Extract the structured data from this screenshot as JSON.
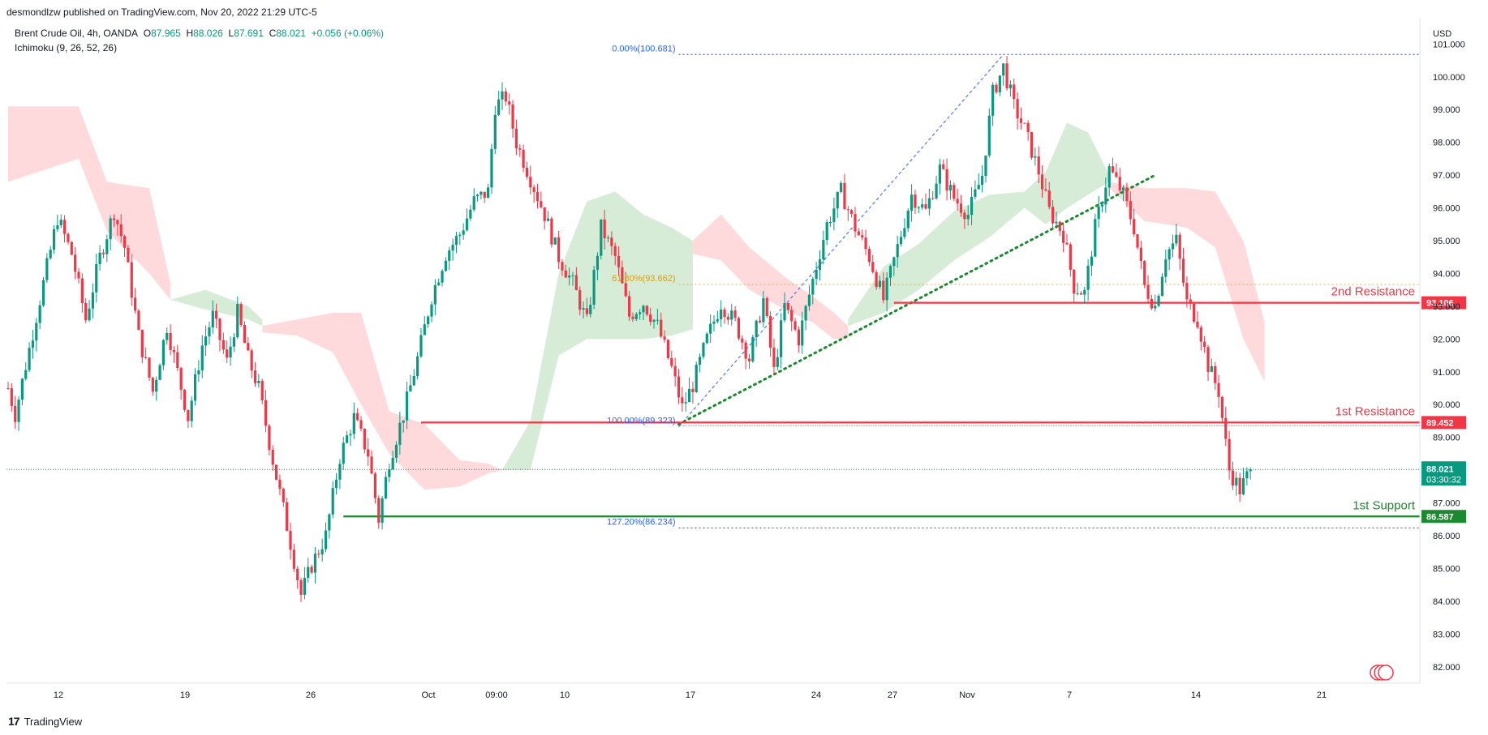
{
  "header": {
    "published": "desmondlzw published on TradingView.com, Nov 20, 2022 21:29 UTC-5"
  },
  "legend": {
    "symbol": "Brent Crude Oil, 4h, OANDA",
    "o_label": "O",
    "o": "87.965",
    "h_label": "H",
    "h": "88.026",
    "l_label": "L",
    "l": "87.691",
    "c_label": "C",
    "c": "88.021",
    "change": "+0.056 (+0.06%)",
    "indicator": "Ichimoku (9, 26, 52, 26)"
  },
  "footer": {
    "brand": "TradingView"
  },
  "colors": {
    "up": "#089981",
    "down": "#f23645",
    "resistance": "#f23645",
    "support": "#1b8a2e",
    "fib": "#2962ff",
    "cloud_bull": "#c8e6c9",
    "cloud_bear": "#ffcdd2",
    "last_price": "#089981"
  },
  "chart_data": {
    "type": "candlestick",
    "instrument": "Brent Crude Oil",
    "timeframe": "4h",
    "currency": "USD",
    "ylim": [
      81.5,
      101.8
    ],
    "y_ticks": [
      "82.000",
      "83.000",
      "84.000",
      "85.000",
      "86.000",
      "87.000",
      "88.000",
      "89.000",
      "90.000",
      "91.000",
      "92.000",
      "93.000",
      "94.000",
      "95.000",
      "96.000",
      "97.000",
      "98.000",
      "99.000",
      "100.000",
      "101.000"
    ],
    "x_ticks": [
      "12",
      "19",
      "26",
      "Oct",
      "09:00",
      "10",
      "17",
      "24",
      "27",
      "Nov",
      "7",
      "14",
      "21"
    ],
    "levels": [
      {
        "name": "2nd Resistance",
        "value": 93.106,
        "label": "93.106",
        "kind": "resistance"
      },
      {
        "name": "1st Resistance",
        "value": 89.452,
        "label": "89.452",
        "kind": "resistance"
      },
      {
        "name": "1st Support",
        "value": 86.587,
        "label": "86.587",
        "kind": "support"
      }
    ],
    "last_price": {
      "value": 88.021,
      "label": "88.021",
      "countdown": "03:30:32"
    },
    "fib_labels": [
      {
        "text": "0.00%(100.681)",
        "value": 100.681
      },
      {
        "text": "61.80%(93.662)",
        "value": 93.662
      },
      {
        "text": "100.00%(89.323)",
        "value": 89.323
      },
      {
        "text": "127.20%(86.234)",
        "value": 86.234
      }
    ],
    "price_path": [
      {
        "t": 0,
        "p": 90.5
      },
      {
        "t": 2,
        "p": 89.7
      },
      {
        "t": 5,
        "p": 91.2
      },
      {
        "t": 9,
        "p": 93.2
      },
      {
        "t": 14,
        "p": 95.7
      },
      {
        "t": 18,
        "p": 94.6
      },
      {
        "t": 22,
        "p": 92.6
      },
      {
        "t": 26,
        "p": 94.5
      },
      {
        "t": 30,
        "p": 95.9
      },
      {
        "t": 33,
        "p": 94.8
      },
      {
        "t": 37,
        "p": 92.1
      },
      {
        "t": 41,
        "p": 90.4
      },
      {
        "t": 45,
        "p": 92.4
      },
      {
        "t": 48,
        "p": 91.0
      },
      {
        "t": 51,
        "p": 89.6
      },
      {
        "t": 55,
        "p": 91.8
      },
      {
        "t": 58,
        "p": 92.7
      },
      {
        "t": 62,
        "p": 91.3
      },
      {
        "t": 65,
        "p": 92.8
      },
      {
        "t": 68,
        "p": 91.4
      },
      {
        "t": 71,
        "p": 90.5
      },
      {
        "t": 75,
        "p": 88.3
      },
      {
        "t": 79,
        "p": 86.3
      },
      {
        "t": 83,
        "p": 84.2
      },
      {
        "t": 86,
        "p": 85.1
      },
      {
        "t": 90,
        "p": 86.0
      },
      {
        "t": 94,
        "p": 88.4
      },
      {
        "t": 98,
        "p": 89.6
      },
      {
        "t": 102,
        "p": 88.5
      },
      {
        "t": 105,
        "p": 86.5
      },
      {
        "t": 108,
        "p": 88.3
      },
      {
        "t": 112,
        "p": 89.7
      },
      {
        "t": 116,
        "p": 91.4
      },
      {
        "t": 120,
        "p": 93.3
      },
      {
        "t": 124,
        "p": 94.6
      },
      {
        "t": 128,
        "p": 95.2
      },
      {
        "t": 132,
        "p": 96.2
      },
      {
        "t": 136,
        "p": 96.5
      },
      {
        "t": 138,
        "p": 99.1
      },
      {
        "t": 141,
        "p": 99.4
      },
      {
        "t": 144,
        "p": 98.0
      },
      {
        "t": 148,
        "p": 96.9
      },
      {
        "t": 152,
        "p": 95.8
      },
      {
        "t": 156,
        "p": 94.5
      },
      {
        "t": 160,
        "p": 93.7
      },
      {
        "t": 164,
        "p": 92.5
      },
      {
        "t": 168,
        "p": 95.4
      },
      {
        "t": 172,
        "p": 94.5
      },
      {
        "t": 176,
        "p": 92.7
      },
      {
        "t": 180,
        "p": 93.1
      },
      {
        "t": 184,
        "p": 92.4
      },
      {
        "t": 188,
        "p": 91.1
      },
      {
        "t": 191,
        "p": 89.9
      },
      {
        "t": 194,
        "p": 90.6
      },
      {
        "t": 198,
        "p": 92.0
      },
      {
        "t": 202,
        "p": 93.1
      },
      {
        "t": 206,
        "p": 92.5
      },
      {
        "t": 210,
        "p": 91.4
      },
      {
        "t": 214,
        "p": 93.2
      },
      {
        "t": 217,
        "p": 91.0
      },
      {
        "t": 220,
        "p": 93.0
      },
      {
        "t": 224,
        "p": 92.0
      },
      {
        "t": 228,
        "p": 93.8
      },
      {
        "t": 232,
        "p": 95.5
      },
      {
        "t": 236,
        "p": 96.5
      },
      {
        "t": 240,
        "p": 95.4
      },
      {
        "t": 244,
        "p": 94.5
      },
      {
        "t": 248,
        "p": 93.2
      },
      {
        "t": 252,
        "p": 94.8
      },
      {
        "t": 256,
        "p": 96.4
      },
      {
        "t": 260,
        "p": 95.9
      },
      {
        "t": 264,
        "p": 97.2
      },
      {
        "t": 268,
        "p": 96.3
      },
      {
        "t": 272,
        "p": 95.8
      },
      {
        "t": 276,
        "p": 97.0
      },
      {
        "t": 279,
        "p": 99.5
      },
      {
        "t": 282,
        "p": 100.3
      },
      {
        "t": 285,
        "p": 99.1
      },
      {
        "t": 288,
        "p": 98.4
      },
      {
        "t": 292,
        "p": 97.1
      },
      {
        "t": 295,
        "p": 95.9
      },
      {
        "t": 299,
        "p": 95.2
      },
      {
        "t": 302,
        "p": 93.6
      },
      {
        "t": 305,
        "p": 93.4
      },
      {
        "t": 308,
        "p": 95.4
      },
      {
        "t": 312,
        "p": 97.2
      },
      {
        "t": 316,
        "p": 96.4
      },
      {
        "t": 319,
        "p": 95.4
      },
      {
        "t": 322,
        "p": 93.6
      },
      {
        "t": 325,
        "p": 93.0
      },
      {
        "t": 328,
        "p": 94.6
      },
      {
        "t": 331,
        "p": 95.0
      },
      {
        "t": 334,
        "p": 93.1
      },
      {
        "t": 337,
        "p": 92.6
      },
      {
        "t": 340,
        "p": 91.2
      },
      {
        "t": 343,
        "p": 90.4
      },
      {
        "t": 346,
        "p": 88.0
      },
      {
        "t": 349,
        "p": 87.4
      },
      {
        "t": 352,
        "p": 88.0
      }
    ],
    "cloud_segments": [
      {
        "kind": "bear",
        "pts": [
          [
            0,
            99.1,
            96.8
          ],
          [
            20,
            99.1,
            97.5
          ],
          [
            28,
            96.8,
            95.3
          ],
          [
            40,
            96.6,
            94.0
          ],
          [
            46,
            93.7,
            93.2
          ]
        ]
      },
      {
        "kind": "bull",
        "pts": [
          [
            46,
            93.2,
            93.2
          ],
          [
            56,
            93.5,
            92.9
          ],
          [
            68,
            93.0,
            92.6
          ],
          [
            72,
            92.6,
            92.4
          ]
        ]
      },
      {
        "kind": "bear",
        "pts": [
          [
            72,
            92.4,
            92.2
          ],
          [
            82,
            92.6,
            92.1
          ],
          [
            92,
            92.8,
            91.6
          ],
          [
            100,
            92.8,
            90.0
          ],
          [
            108,
            89.8,
            88.5
          ],
          [
            118,
            89.4,
            87.4
          ],
          [
            128,
            88.3,
            87.5
          ],
          [
            136,
            88.2,
            87.9
          ],
          [
            140,
            88.0,
            88.0
          ]
        ]
      },
      {
        "kind": "bull",
        "pts": [
          [
            140,
            88.0,
            88.0
          ],
          [
            148,
            89.5,
            88.0
          ],
          [
            156,
            94.0,
            91.5
          ],
          [
            164,
            96.2,
            92.0
          ],
          [
            172,
            96.5,
            92.0
          ],
          [
            180,
            95.8,
            92.0
          ],
          [
            188,
            95.4,
            92.1
          ],
          [
            194,
            95.0,
            92.3
          ]
        ]
      },
      {
        "kind": "bear",
        "pts": [
          [
            194,
            95.0,
            94.6
          ],
          [
            202,
            95.8,
            94.4
          ],
          [
            210,
            94.8,
            93.5
          ],
          [
            220,
            93.9,
            92.9
          ],
          [
            228,
            93.3,
            92.5
          ],
          [
            234,
            92.8,
            92.0
          ],
          [
            238,
            92.4,
            92.0
          ]
        ]
      },
      {
        "kind": "bull",
        "pts": [
          [
            238,
            92.6,
            92.4
          ],
          [
            248,
            94.2,
            92.8
          ],
          [
            258,
            94.9,
            93.5
          ],
          [
            268,
            95.9,
            94.4
          ],
          [
            278,
            96.4,
            95.1
          ],
          [
            288,
            96.5,
            96.0
          ],
          [
            294,
            97.1,
            95.5
          ],
          [
            300,
            98.6,
            96.0
          ],
          [
            306,
            98.3,
            96.4
          ],
          [
            312,
            97.0,
            96.8
          ]
        ]
      },
      {
        "kind": "bear",
        "pts": [
          [
            312,
            96.8,
            96.6
          ],
          [
            322,
            96.6,
            95.6
          ],
          [
            334,
            96.6,
            95.4
          ],
          [
            342,
            96.5,
            94.8
          ],
          [
            350,
            95.0,
            92.0
          ],
          [
            356,
            92.5,
            90.7
          ]
        ]
      }
    ],
    "annotations": [
      {
        "text": "2nd Resistance",
        "value": 93.106
      },
      {
        "text": "1st Resistance",
        "value": 89.452
      },
      {
        "text": "1st Support",
        "value": 86.587
      }
    ]
  }
}
